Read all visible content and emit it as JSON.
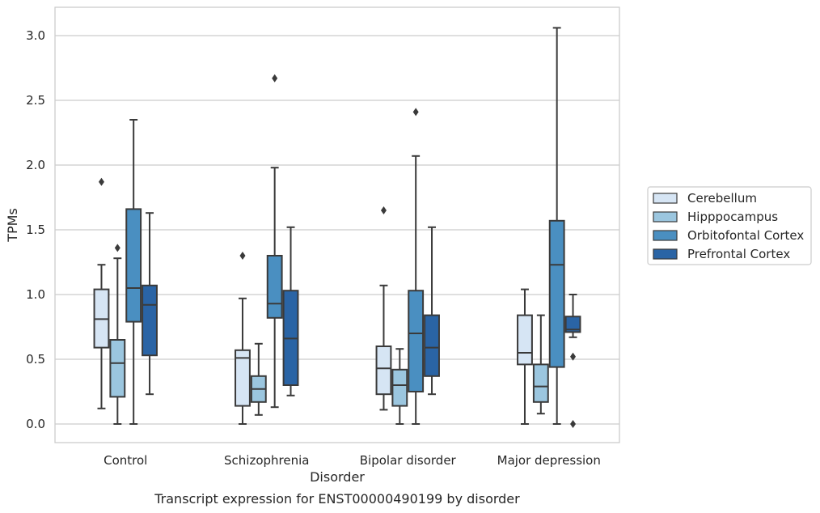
{
  "caption": "Transcript expression for ENST00000490199 by disorder",
  "chart_data": {
    "type": "boxplot",
    "xlabel": "Disorder",
    "ylabel": "TPMs",
    "ylim": [
      -0.15,
      3.22
    ],
    "yticks": [
      0.0,
      0.5,
      1.0,
      1.5,
      2.0,
      2.5,
      3.0
    ],
    "ytick_labels": [
      "0.0",
      "0.5",
      "1.0",
      "1.5",
      "2.0",
      "2.5",
      "3.0"
    ],
    "grid": "horizontal",
    "legend_position": "right",
    "categories": [
      "Control",
      "Schizophrenia",
      "Bipolar disorder",
      "Major depression"
    ],
    "series": [
      {
        "name": "Cerebellum",
        "color": "#d6e5f4",
        "boxes": [
          {
            "whislo": 0.12,
            "q1": 0.59,
            "med": 0.81,
            "q3": 1.04,
            "whishi": 1.23,
            "fliers": [
              1.87
            ]
          },
          {
            "whislo": 0.0,
            "q1": 0.14,
            "med": 0.51,
            "q3": 0.57,
            "whishi": 0.97,
            "fliers": [
              1.3
            ]
          },
          {
            "whislo": 0.11,
            "q1": 0.23,
            "med": 0.43,
            "q3": 0.6,
            "whishi": 1.07,
            "fliers": [
              1.65
            ]
          },
          {
            "whislo": 0.0,
            "q1": 0.46,
            "med": 0.55,
            "q3": 0.84,
            "whishi": 1.04,
            "fliers": []
          }
        ]
      },
      {
        "name": "Hipppocampus",
        "color": "#9bc6df",
        "boxes": [
          {
            "whislo": 0.0,
            "q1": 0.21,
            "med": 0.47,
            "q3": 0.65,
            "whishi": 1.28,
            "fliers": [
              1.36
            ]
          },
          {
            "whislo": 0.07,
            "q1": 0.17,
            "med": 0.27,
            "q3": 0.37,
            "whishi": 0.62,
            "fliers": []
          },
          {
            "whislo": 0.0,
            "q1": 0.14,
            "med": 0.3,
            "q3": 0.42,
            "whishi": 0.58,
            "fliers": []
          },
          {
            "whislo": 0.08,
            "q1": 0.17,
            "med": 0.29,
            "q3": 0.46,
            "whishi": 0.84,
            "fliers": []
          }
        ]
      },
      {
        "name": "Orbitofontal Cortex",
        "color": "#4a8fc1",
        "boxes": [
          {
            "whislo": 0.0,
            "q1": 0.79,
            "med": 1.05,
            "q3": 1.66,
            "whishi": 2.35,
            "fliers": []
          },
          {
            "whislo": 0.13,
            "q1": 0.82,
            "med": 0.93,
            "q3": 1.3,
            "whishi": 1.98,
            "fliers": [
              2.67
            ]
          },
          {
            "whislo": 0.0,
            "q1": 0.25,
            "med": 0.7,
            "q3": 1.03,
            "whishi": 2.07,
            "fliers": [
              2.41
            ]
          },
          {
            "whislo": 0.0,
            "q1": 0.44,
            "med": 1.23,
            "q3": 1.57,
            "whishi": 3.06,
            "fliers": []
          }
        ]
      },
      {
        "name": "Prefrontal Cortex",
        "color": "#2a64a5",
        "boxes": [
          {
            "whislo": 0.23,
            "q1": 0.53,
            "med": 0.92,
            "q3": 1.07,
            "whishi": 1.63,
            "fliers": []
          },
          {
            "whislo": 0.22,
            "q1": 0.3,
            "med": 0.66,
            "q3": 1.03,
            "whishi": 1.52,
            "fliers": []
          },
          {
            "whislo": 0.23,
            "q1": 0.37,
            "med": 0.59,
            "q3": 0.84,
            "whishi": 1.52,
            "fliers": []
          },
          {
            "whislo": 0.67,
            "q1": 0.71,
            "med": 0.73,
            "q3": 0.83,
            "whishi": 1.0,
            "fliers": [
              0.52,
              0.0
            ]
          }
        ]
      }
    ]
  }
}
